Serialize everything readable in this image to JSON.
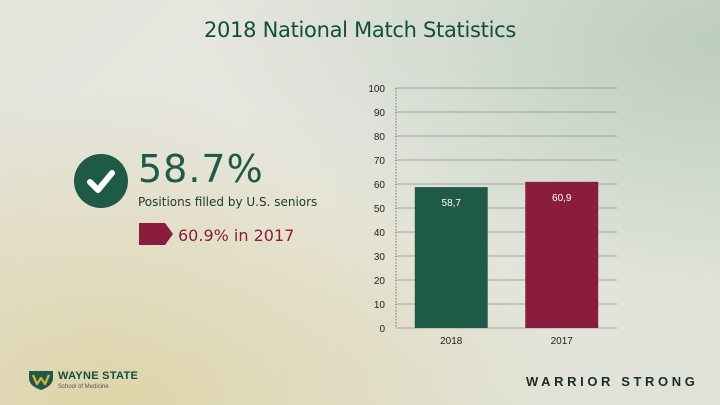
{
  "title": "2018 National Match Statistics",
  "highlight": {
    "value": "58.7%",
    "caption": "Positions filled by U.S. seniors",
    "previous": "60.9% in 2017"
  },
  "colors": {
    "green": "#1f5a46",
    "maroon": "#8a1d3d"
  },
  "icons": {
    "check": "checkmark-circle",
    "tag": "pentagon-arrow"
  },
  "footer": {
    "logo_name": "WAYNE STATE",
    "logo_sub": "School of Medicine",
    "tagline": "WARRIOR STRONG"
  },
  "chart_data": {
    "type": "bar",
    "title": "",
    "xlabel": "",
    "ylabel": "",
    "categories": [
      "2018",
      "2017"
    ],
    "values": [
      58.7,
      60.9
    ],
    "value_labels": [
      "58,7",
      "60,9"
    ],
    "colors": [
      "#1f5a46",
      "#8a1d3d"
    ],
    "ylim": [
      0,
      100
    ],
    "yticks": [
      0,
      10,
      20,
      30,
      40,
      50,
      60,
      70,
      80,
      90,
      100
    ],
    "grid": true,
    "legend": "none"
  }
}
